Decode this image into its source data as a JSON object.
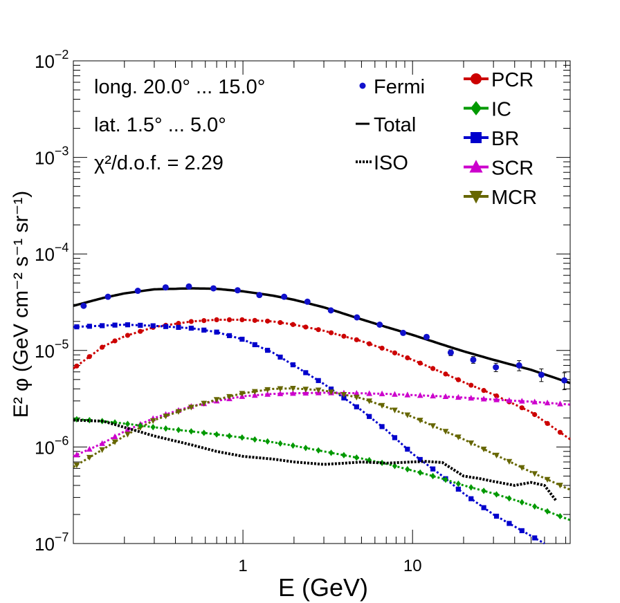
{
  "chart_data": {
    "type": "scatter",
    "title": "",
    "xlabel": "E (GeV)",
    "ylabel": "E² φ (GeV cm⁻² s⁻¹ sr⁻¹)",
    "xscale": "log",
    "yscale": "log",
    "xlim": [
      0.1,
      85
    ],
    "ylim": [
      1e-07,
      0.01
    ],
    "x_tick_labels": [
      {
        "value": 1,
        "label": "1"
      },
      {
        "value": 10,
        "label": "10"
      }
    ],
    "y_tick_labels": [
      {
        "value": 1e-07,
        "base": "10",
        "exp": "−7"
      },
      {
        "value": 1e-06,
        "base": "10",
        "exp": "−6"
      },
      {
        "value": 1e-05,
        "base": "10",
        "exp": "−5"
      },
      {
        "value": 0.0001,
        "base": "10",
        "exp": "−4"
      },
      {
        "value": 0.001,
        "base": "10",
        "exp": "−3"
      },
      {
        "value": 0.01,
        "base": "10",
        "exp": "−2"
      }
    ],
    "annotations": [
      "long. 20.0° ... 15.0°",
      "lat. 1.5° ... 5.0°",
      "χ²/d.o.f. = 2.29"
    ],
    "legend_left": [
      {
        "name": "Fermi",
        "color": "#0000cc",
        "style": "points"
      },
      {
        "name": "Total",
        "color": "#000000",
        "style": "line"
      },
      {
        "name": "ISO",
        "color": "#000000",
        "style": "dotted"
      }
    ],
    "legend_right": [
      {
        "name": "PCR",
        "color": "#cc0000",
        "marker": "circle"
      },
      {
        "name": "IC",
        "color": "#009900",
        "marker": "diamond"
      },
      {
        "name": "BR",
        "color": "#0000cc",
        "marker": "square"
      },
      {
        "name": "SCR",
        "color": "#cc00cc",
        "marker": "triangle-up"
      },
      {
        "name": "MCR",
        "color": "#666600",
        "marker": "triangle-down"
      }
    ],
    "fermi_points": {
      "x": [
        0.115,
        0.16,
        0.24,
        0.35,
        0.48,
        0.67,
        0.93,
        1.25,
        1.75,
        2.4,
        3.3,
        4.7,
        6.4,
        8.8,
        12.1,
        16.8,
        22.8,
        31.0,
        42.5,
        57.5,
        78.5
      ],
      "y": [
        2.9e-05,
        3.6e-05,
        4.15e-05,
        4.5e-05,
        4.6e-05,
        4.4e-05,
        4.2e-05,
        3.75e-05,
        3.6e-05,
        3.2e-05,
        2.6e-05,
        2.2e-05,
        1.85e-05,
        1.52e-05,
        1.38e-05,
        9.5e-06,
        8e-06,
        6.7e-06,
        7e-06,
        5.6e-06,
        4.9e-06
      ],
      "err_rel": [
        0.02,
        0.02,
        0.02,
        0.02,
        0.02,
        0.02,
        0.02,
        0.02,
        0.02,
        0.02,
        0.03,
        0.03,
        0.03,
        0.04,
        0.05,
        0.07,
        0.08,
        0.1,
        0.12,
        0.15,
        0.2
      ]
    },
    "series": [
      {
        "name": "Total",
        "color": "#000000",
        "style": "solid",
        "x": [
          0.1,
          0.15,
          0.2,
          0.3,
          0.5,
          0.7,
          1.0,
          1.5,
          2.0,
          3.0,
          5.0,
          7.0,
          10,
          15,
          20,
          30,
          50,
          85
        ],
        "y": [
          2.9e-05,
          3.5e-05,
          3.9e-05,
          4.3e-05,
          4.4e-05,
          4.35e-05,
          4.1e-05,
          3.7e-05,
          3.35e-05,
          2.8e-05,
          2.1e-05,
          1.75e-05,
          1.45e-05,
          1.15e-05,
          9.8e-06,
          8e-06,
          6.3e-06,
          4.6e-06
        ]
      },
      {
        "name": "PCR",
        "color": "#cc0000",
        "style": "markers",
        "marker": "circle",
        "x": [
          0.1,
          0.15,
          0.2,
          0.3,
          0.5,
          0.7,
          1.0,
          1.5,
          2.0,
          3.0,
          5.0,
          7.0,
          10,
          15,
          20,
          30,
          50,
          85
        ],
        "y": [
          6.5e-06,
          1.1e-05,
          1.4e-05,
          1.75e-05,
          2e-05,
          2.08e-05,
          2.08e-05,
          2e-05,
          1.85e-05,
          1.6e-05,
          1.25e-05,
          1.02e-05,
          8e-06,
          5.9e-06,
          4.7e-06,
          3.5e-06,
          2.3e-06,
          1.2e-06
        ]
      },
      {
        "name": "BR",
        "color": "#0000cc",
        "style": "markers",
        "marker": "square",
        "x": [
          0.1,
          0.2,
          0.3,
          0.5,
          0.7,
          1.0,
          1.5,
          2.0,
          3.0,
          5.0,
          7.0,
          10,
          15,
          20,
          30,
          50,
          60
        ],
        "y": [
          1.75e-05,
          1.85e-05,
          1.8e-05,
          1.7e-05,
          1.55e-05,
          1.3e-05,
          9.5e-06,
          7e-06,
          4.5e-06,
          2.4e-06,
          1.5e-06,
          8.5e-07,
          5e-07,
          3.3e-07,
          2e-07,
          1.2e-07,
          1e-07
        ]
      },
      {
        "name": "SCR",
        "color": "#cc00cc",
        "style": "markers",
        "marker": "triangle-up",
        "x": [
          0.1,
          0.15,
          0.2,
          0.3,
          0.5,
          0.7,
          1.0,
          1.5,
          2.0,
          3.0,
          5.0,
          7.0,
          10,
          15,
          20,
          30,
          50,
          85
        ],
        "y": [
          8e-07,
          1.1e-06,
          1.45e-06,
          2e-06,
          2.65e-06,
          3e-06,
          3.35e-06,
          3.55e-06,
          3.6e-06,
          3.65e-06,
          3.6e-06,
          3.55e-06,
          3.45e-06,
          3.35e-06,
          3.25e-06,
          3.1e-06,
          2.95e-06,
          2.75e-06
        ]
      },
      {
        "name": "MCR",
        "color": "#666600",
        "style": "markers",
        "marker": "triangle-down",
        "x": [
          0.1,
          0.15,
          0.2,
          0.3,
          0.5,
          0.7,
          1.0,
          1.5,
          2.0,
          3.0,
          5.0,
          7.0,
          10,
          15,
          20,
          30,
          50,
          85
        ],
        "y": [
          6.2e-07,
          9.5e-07,
          1.3e-06,
          1.9e-06,
          2.6e-06,
          3.1e-06,
          3.6e-06,
          4e-06,
          4.05e-06,
          3.85e-06,
          3.2e-06,
          2.6e-06,
          2.05e-06,
          1.5e-06,
          1.2e-06,
          8.5e-07,
          5.5e-07,
          3.6e-07
        ]
      },
      {
        "name": "IC",
        "color": "#009900",
        "style": "markers",
        "marker": "diamond",
        "x": [
          0.1,
          0.15,
          0.2,
          0.3,
          0.5,
          0.7,
          1.0,
          1.5,
          2.0,
          3.0,
          5.0,
          7.0,
          10,
          15,
          20,
          30,
          50,
          85
        ],
        "y": [
          1.95e-06,
          1.85e-06,
          1.75e-06,
          1.6e-06,
          1.45e-06,
          1.35e-06,
          1.25e-06,
          1.12e-06,
          1.03e-06,
          9e-07,
          7.6e-07,
          6.7e-07,
          5.7e-07,
          4.7e-07,
          4e-07,
          3.3e-07,
          2.5e-07,
          1.75e-07
        ]
      },
      {
        "name": "ISO",
        "color": "#000000",
        "style": "dotted",
        "x": [
          0.1,
          0.15,
          0.2,
          0.3,
          0.5,
          0.7,
          1.0,
          1.5,
          2.0,
          3.0,
          4.0,
          5.0,
          7.0,
          10,
          12,
          15,
          20,
          25,
          30,
          40,
          50,
          60,
          70
        ],
        "y": [
          1.9e-06,
          1.85e-06,
          1.6e-06,
          1.3e-06,
          1.05e-06,
          9e-07,
          8e-07,
          7.5e-07,
          7e-07,
          6.6e-07,
          6.8e-07,
          7e-07,
          6.8e-07,
          7e-07,
          7.1e-07,
          6.9e-07,
          5e-07,
          4.7e-07,
          4.4e-07,
          4e-07,
          4.3e-07,
          4e-07,
          2.8e-07
        ]
      }
    ]
  }
}
